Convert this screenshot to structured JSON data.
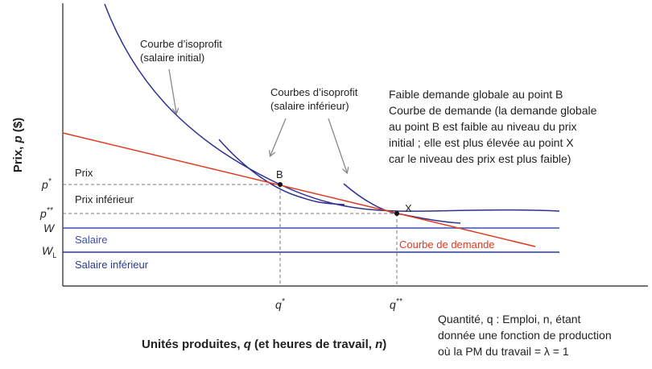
{
  "figure": {
    "y_axis_label": {
      "main": "Prix, ",
      "var": "p",
      "unit": " ($)"
    },
    "x_axis_label": {
      "main": "Unités produites, ",
      "q": "q",
      "mid": " (et heures de travail, ",
      "n": "n",
      "end": ")"
    },
    "tick_pstar": "p*",
    "tick_pstarstar": "p**",
    "tick_W": "W",
    "tick_WL": "W",
    "tick_WL_sub": "L",
    "tick_qstar": "q*",
    "tick_qstarstar": "q**",
    "label_prix": "Prix",
    "label_prix_inferieur": "Prix inférieur",
    "label_salaire": "Salaire",
    "label_salaire_inferieur": "Salaire inférieur",
    "point_B": "B",
    "point_X": "X",
    "demand_curve_label": "Courbe de demande",
    "isoprofit_initial": [
      "Courbe d’isoprofit",
      "(salaire initial)"
    ],
    "isoprofit_lower": [
      "Courbes d’isoprofit",
      "(salaire inférieur)"
    ],
    "annotation": [
      "Faible demande globale au point B",
      "Courbe de demande (la demande globale",
      "au point B est faible au niveau du prix",
      "initial ; elle est plus élevée au point X",
      "car le niveau des prix est plus faible)"
    ],
    "quantity_note": [
      "Quantité, q : Emploi, n, étant",
      "donnée une fonction de production",
      "où la PM du travail = λ = 1"
    ]
  },
  "colors": {
    "axis": "#222222",
    "demand": "#e03a1e",
    "isoprofit": "#2e3192",
    "wage": "#3a4fb8",
    "wage_lower": "#283a8e",
    "guide": "#777777",
    "arrow": "#888888"
  }
}
